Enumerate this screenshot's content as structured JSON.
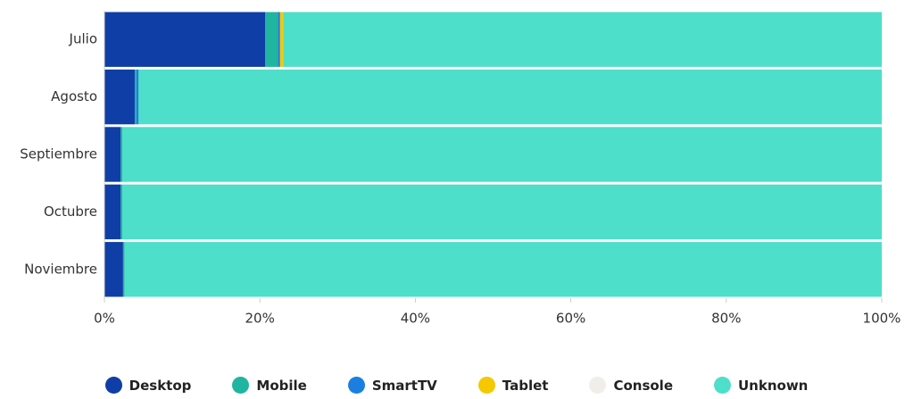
{
  "chart_data": {
    "type": "stacked-bar-horizontal",
    "categories": [
      "Julio",
      "Agosto",
      "Septiembre",
      "Octubre",
      "Noviembre"
    ],
    "series": [
      {
        "name": "Desktop",
        "color": "#0f3ea6",
        "values": [
          20.7,
          3.9,
          2.1,
          2.1,
          2.4
        ]
      },
      {
        "name": "Mobile",
        "color": "#1fb5a0",
        "values": [
          1.6,
          0.2,
          0.2,
          0.2,
          0.2
        ]
      },
      {
        "name": "SmartTV",
        "color": "#1b7fe0",
        "values": [
          0.3,
          0.3,
          0,
          0,
          0
        ]
      },
      {
        "name": "Tablet",
        "color": "#f5c800",
        "values": [
          0.4,
          0,
          0,
          0,
          0
        ]
      },
      {
        "name": "Console",
        "color": "#efeee8",
        "values": [
          0,
          0,
          0,
          0,
          0
        ]
      },
      {
        "name": "Unknown",
        "color": "#4ddfc9",
        "values": [
          77.0,
          95.6,
          97.7,
          97.7,
          97.4
        ]
      }
    ],
    "xlim": [
      0,
      100
    ],
    "xticks": [
      {
        "value": 0,
        "label": "0%"
      },
      {
        "value": 20,
        "label": "20%"
      },
      {
        "value": 40,
        "label": "40%"
      },
      {
        "value": 60,
        "label": "60%"
      },
      {
        "value": 80,
        "label": "80%"
      },
      {
        "value": 100,
        "label": "100%"
      }
    ],
    "legend": "bottom"
  }
}
